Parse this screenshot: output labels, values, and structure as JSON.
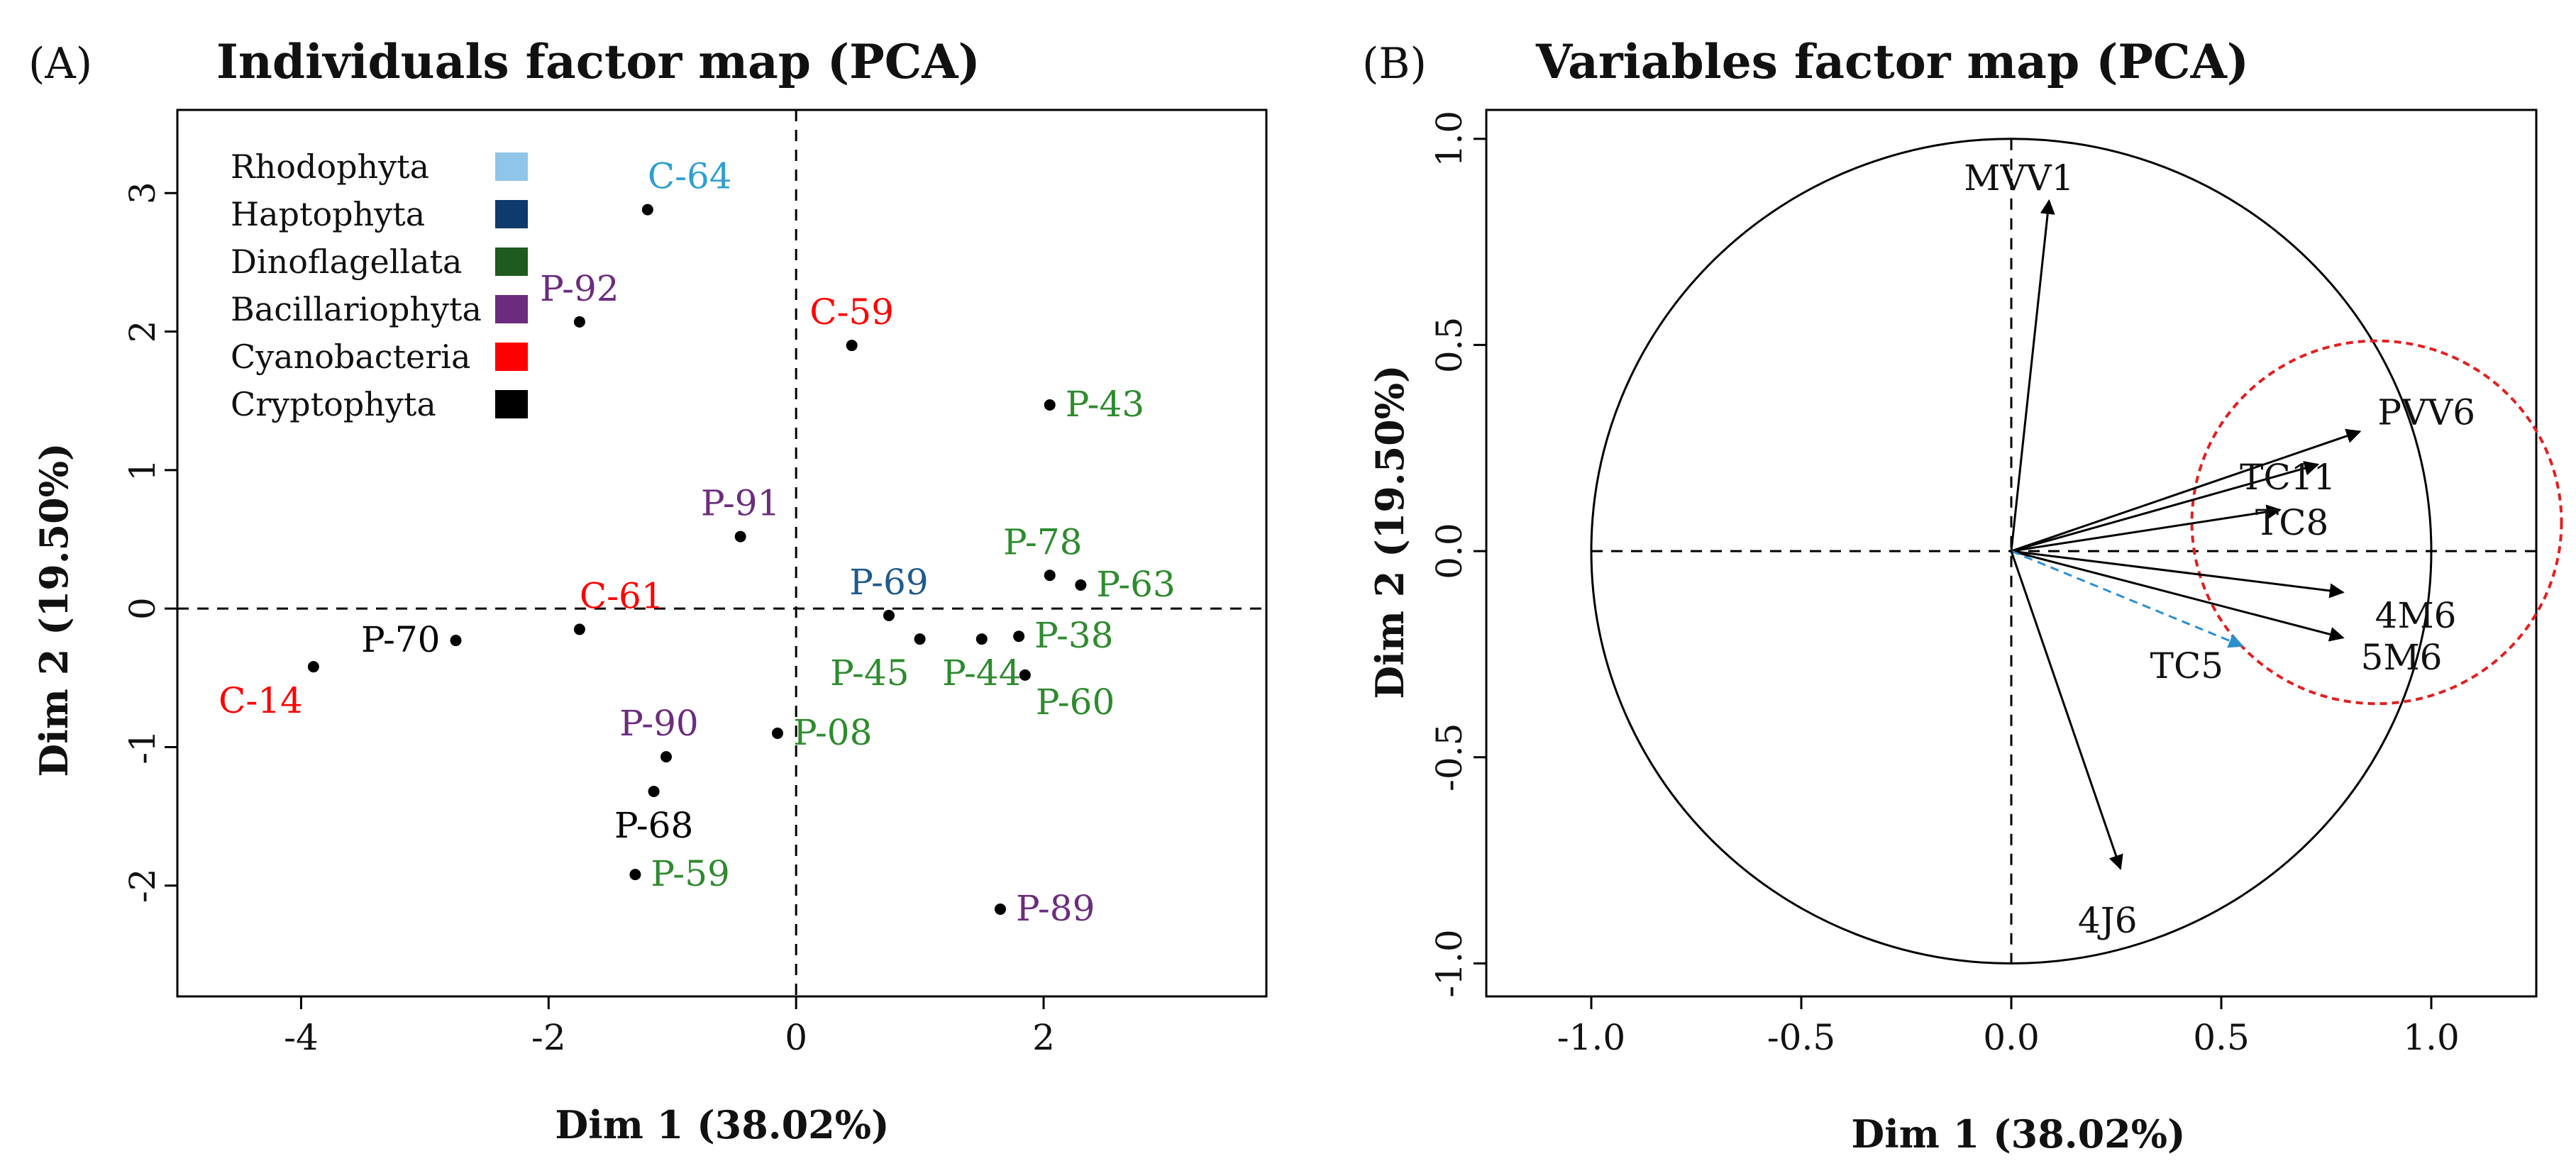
{
  "chart_data": [
    {
      "type": "scatter",
      "panel_label": "(A)",
      "title": "Individuals factor map (PCA)",
      "xlabel": "Dim 1 (38.02%)",
      "ylabel": "Dim 2 (19.50%)",
      "xlim": [
        -5.0,
        3.8
      ],
      "ylim": [
        -2.8,
        3.6
      ],
      "xticks": [
        -4,
        -2,
        0,
        2
      ],
      "yticks": [
        -2,
        -1,
        0,
        1,
        2,
        3
      ],
      "legend": [
        {
          "label": "Rhodophyta",
          "color": "#8ec5e8"
        },
        {
          "label": "Haptophyta",
          "color": "#0f3b6c"
        },
        {
          "label": "Dinoflagellata",
          "color": "#1f5a1f"
        },
        {
          "label": "Bacillariophyta",
          "color": "#6b2c7e"
        },
        {
          "label": "Cyanobacteria",
          "color": "#ff0000"
        },
        {
          "label": "Cryptophyta",
          "color": "#000000"
        }
      ],
      "points": [
        {
          "label": "C-64",
          "x": -1.2,
          "y": 2.88,
          "color": "#2f9fd0",
          "anchor": "right-above"
        },
        {
          "label": "P-92",
          "x": -1.75,
          "y": 2.07,
          "color": "#6b2c7e",
          "anchor": "above"
        },
        {
          "label": "C-59",
          "x": 0.45,
          "y": 1.9,
          "color": "#ff0000",
          "anchor": "above"
        },
        {
          "label": "P-43",
          "x": 2.05,
          "y": 1.47,
          "color": "#2e8b2e",
          "anchor": "right"
        },
        {
          "label": "P-91",
          "x": -0.45,
          "y": 0.52,
          "color": "#6b2c7e",
          "anchor": "above"
        },
        {
          "label": "P-78",
          "x": 2.05,
          "y": 0.24,
          "color": "#2e8b2e",
          "anchor": "above-left"
        },
        {
          "label": "P-63",
          "x": 2.3,
          "y": 0.17,
          "color": "#2e8b2e",
          "anchor": "right"
        },
        {
          "label": "P-69",
          "x": 0.75,
          "y": -0.05,
          "color": "#1f5a8c",
          "anchor": "above"
        },
        {
          "label": "C-61",
          "x": -1.75,
          "y": -0.15,
          "color": "#ff0000",
          "anchor": "right-above"
        },
        {
          "label": "P-70",
          "x": -2.75,
          "y": -0.23,
          "color": "#000000",
          "anchor": "left"
        },
        {
          "label": "P-38",
          "x": 1.8,
          "y": -0.2,
          "color": "#2e8b2e",
          "anchor": "right"
        },
        {
          "label": "P-45",
          "x": 1.0,
          "y": -0.22,
          "color": "#2e8b2e",
          "anchor": "below-left"
        },
        {
          "label": "P-44",
          "x": 1.5,
          "y": -0.22,
          "color": "#2e8b2e",
          "anchor": "below"
        },
        {
          "label": "C-14",
          "x": -3.9,
          "y": -0.42,
          "color": "#ff0000",
          "anchor": "below-left"
        },
        {
          "label": "P-60",
          "x": 1.85,
          "y": -0.48,
          "color": "#2e8b2e",
          "anchor": "below-right"
        },
        {
          "label": "P-08",
          "x": -0.15,
          "y": -0.9,
          "color": "#2e8b2e",
          "anchor": "right"
        },
        {
          "label": "P-90",
          "x": -1.05,
          "y": -1.07,
          "color": "#6b2c7e",
          "anchor": "above-left"
        },
        {
          "label": "P-68",
          "x": -1.15,
          "y": -1.32,
          "color": "#000000",
          "anchor": "below"
        },
        {
          "label": "P-59",
          "x": -1.3,
          "y": -1.92,
          "color": "#2e8b2e",
          "anchor": "right"
        },
        {
          "label": "P-89",
          "x": 1.65,
          "y": -2.17,
          "color": "#6b2c7e",
          "anchor": "right"
        }
      ]
    },
    {
      "type": "scatter",
      "subtype": "correlation-circle",
      "panel_label": "(B)",
      "title": "Variables factor map (PCA)",
      "xlabel": "Dim 1 (38.02%)",
      "ylabel": "Dim 2 (19.50%)",
      "xlim": [
        -1.25,
        1.25
      ],
      "ylim": [
        -1.08,
        1.07
      ],
      "xticks": [
        -1.0,
        -0.5,
        0.0,
        0.5,
        1.0
      ],
      "xtick_labels": [
        "-1.0",
        "-0.5",
        "0.0",
        "0.5",
        "1.0"
      ],
      "yticks": [
        -1.0,
        -0.5,
        0.0,
        0.5,
        1.0
      ],
      "ytick_labels": [
        "-1.0",
        "-0.5",
        "0.0",
        "0.5",
        "1.0"
      ],
      "highlight_circle": {
        "cx": 0.87,
        "cy": 0.07,
        "r": 0.44,
        "color": "#e02020",
        "style": "dashed"
      },
      "variables": [
        {
          "label": "MVV1",
          "x": 0.09,
          "y": 0.85,
          "color": "#000000",
          "dashed": false
        },
        {
          "label": "PVV6",
          "x": 0.83,
          "y": 0.29,
          "color": "#000000",
          "dashed": false
        },
        {
          "label": "TC11",
          "x": 0.73,
          "y": 0.21,
          "color": "#000000",
          "dashed": false
        },
        {
          "label": "TC8",
          "x": 0.64,
          "y": 0.1,
          "color": "#000000",
          "dashed": false
        },
        {
          "label": "4M6",
          "x": 0.79,
          "y": -0.1,
          "color": "#000000",
          "dashed": false
        },
        {
          "label": "5M6",
          "x": 0.79,
          "y": -0.21,
          "color": "#000000",
          "dashed": false
        },
        {
          "label": "TC5",
          "x": 0.55,
          "y": -0.23,
          "color": "#2b8fd0",
          "dashed": true
        },
        {
          "label": "4J6",
          "x": 0.26,
          "y": -0.77,
          "color": "#000000",
          "dashed": false
        }
      ]
    }
  ]
}
